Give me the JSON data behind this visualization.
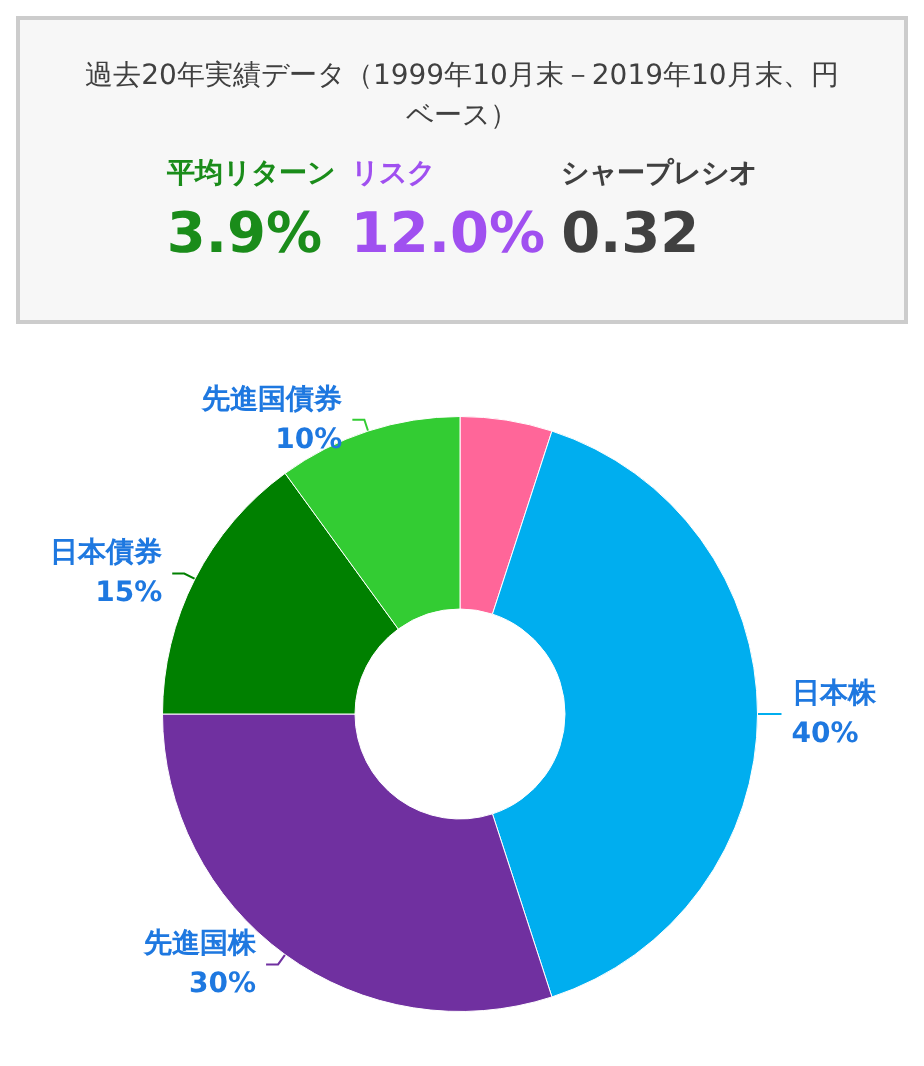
{
  "chart_data": [
    {
      "type": "other",
      "title": "過去20年実績データ（1999年10月末－2019年10月末、円ベース）",
      "annotations": [
        "平均リターン",
        "3.9%",
        "リスク",
        "12.0%",
        "シャープレシオ",
        "0.32"
      ]
    },
    {
      "type": "donut",
      "categories": [
        null,
        "日本株",
        "先進国株",
        "日本債券",
        "先進国債券"
      ],
      "values": [
        5,
        40,
        30,
        15,
        10
      ],
      "value_labels": [
        null,
        "40%",
        "30%",
        "15%",
        "10%"
      ],
      "colors": [
        "#ff6699",
        "#00aeef",
        "#7030a0",
        "#008000",
        "#33cc33"
      ]
    }
  ]
}
